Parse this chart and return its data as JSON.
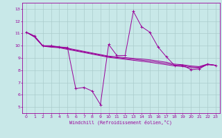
{
  "xlabel": "Windchill (Refroidissement éolien,°C)",
  "bg_color": "#c8e8e8",
  "line_color": "#990099",
  "grid_color": "#aacccc",
  "xlim": [
    -0.5,
    23.5
  ],
  "ylim": [
    4.5,
    13.5
  ],
  "xticks": [
    0,
    1,
    2,
    3,
    4,
    5,
    6,
    7,
    8,
    9,
    10,
    11,
    12,
    13,
    14,
    15,
    16,
    17,
    18,
    19,
    20,
    21,
    22,
    23
  ],
  "yticks": [
    5,
    6,
    7,
    8,
    9,
    10,
    11,
    12,
    13
  ],
  "series": [
    [
      0,
      11.1
    ],
    [
      1,
      10.8
    ],
    [
      2,
      10.0
    ],
    [
      3,
      10.0
    ],
    [
      4,
      9.9
    ],
    [
      5,
      9.85
    ],
    [
      6,
      6.5
    ],
    [
      7,
      6.6
    ],
    [
      8,
      6.3
    ],
    [
      9,
      5.2
    ],
    [
      10,
      10.1
    ],
    [
      11,
      9.2
    ],
    [
      12,
      9.2
    ],
    [
      13,
      12.8
    ],
    [
      14,
      11.55
    ],
    [
      15,
      11.1
    ],
    [
      16,
      9.9
    ],
    [
      17,
      9.1
    ],
    [
      18,
      8.4
    ],
    [
      19,
      8.4
    ],
    [
      20,
      8.05
    ],
    [
      21,
      8.1
    ],
    [
      22,
      8.5
    ],
    [
      23,
      8.4
    ]
  ],
  "series2": [
    [
      0,
      11.1
    ],
    [
      1,
      10.75
    ],
    [
      2,
      10.0
    ],
    [
      3,
      9.95
    ],
    [
      4,
      9.9
    ],
    [
      5,
      9.8
    ],
    [
      10,
      9.15
    ],
    [
      15,
      8.85
    ],
    [
      17,
      8.65
    ],
    [
      18,
      8.5
    ],
    [
      19,
      8.45
    ],
    [
      20,
      8.35
    ],
    [
      21,
      8.3
    ],
    [
      22,
      8.5
    ],
    [
      23,
      8.4
    ]
  ],
  "series3": [
    [
      0,
      11.1
    ],
    [
      1,
      10.72
    ],
    [
      2,
      9.98
    ],
    [
      3,
      9.92
    ],
    [
      4,
      9.87
    ],
    [
      5,
      9.75
    ],
    [
      10,
      9.1
    ],
    [
      15,
      8.75
    ],
    [
      17,
      8.55
    ],
    [
      18,
      8.42
    ],
    [
      19,
      8.38
    ],
    [
      20,
      8.28
    ],
    [
      21,
      8.25
    ],
    [
      22,
      8.48
    ],
    [
      23,
      8.4
    ]
  ],
  "series4": [
    [
      0,
      11.1
    ],
    [
      1,
      10.7
    ],
    [
      2,
      9.96
    ],
    [
      3,
      9.88
    ],
    [
      4,
      9.83
    ],
    [
      5,
      9.7
    ],
    [
      10,
      9.05
    ],
    [
      15,
      8.65
    ],
    [
      17,
      8.45
    ],
    [
      18,
      8.35
    ],
    [
      19,
      8.3
    ],
    [
      20,
      8.2
    ],
    [
      21,
      8.18
    ],
    [
      22,
      8.45
    ],
    [
      23,
      8.4
    ]
  ]
}
